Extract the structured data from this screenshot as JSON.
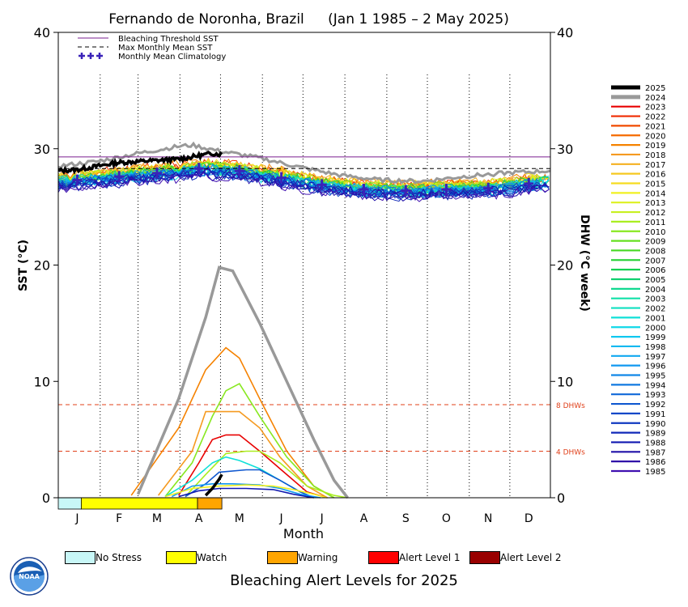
{
  "title_location": "Fernando de Noronha, Brazil",
  "title_period": "(Jan 1 1985 – 2 May 2025)",
  "colors": {
    "threshold": "#7a1f8f",
    "mmm": "#000000",
    "climatology": "#3a23b8",
    "dhw_ref": "#e0401a",
    "alert": {
      "No Stress": "#c8f7f7",
      "Watch": "#ffff00",
      "Warning": "#ffa500",
      "Alert Level 1": "#ff0000",
      "Alert Level 2": "#990000"
    }
  },
  "top_legend": [
    {
      "label": "Bleaching Threshold SST",
      "style": "solid"
    },
    {
      "label": "Max Monthly Mean SST",
      "style": "dashed"
    },
    {
      "label": "Monthly Mean Climatology",
      "style": "cross"
    }
  ],
  "year_legend": [
    {
      "year": "2025",
      "color": "#000000"
    },
    {
      "year": "2024",
      "color": "#999999"
    },
    {
      "year": "2023",
      "color": "#e80000"
    },
    {
      "year": "2022",
      "color": "#ef2b00"
    },
    {
      "year": "2021",
      "color": "#f04a00"
    },
    {
      "year": "2020",
      "color": "#f56a00"
    },
    {
      "year": "2019",
      "color": "#f58200"
    },
    {
      "year": "2018",
      "color": "#f59a20"
    },
    {
      "year": "2017",
      "color": "#f5b020"
    },
    {
      "year": "2016",
      "color": "#f5c820"
    },
    {
      "year": "2015",
      "color": "#f5dc20"
    },
    {
      "year": "2014",
      "color": "#f0f020"
    },
    {
      "year": "2013",
      "color": "#ddf020"
    },
    {
      "year": "2012",
      "color": "#c8f020"
    },
    {
      "year": "2011",
      "color": "#aaee20"
    },
    {
      "year": "2010",
      "color": "#88e820"
    },
    {
      "year": "2009",
      "color": "#66e020"
    },
    {
      "year": "2008",
      "color": "#44d820"
    },
    {
      "year": "2007",
      "color": "#22d030"
    },
    {
      "year": "2006",
      "color": "#10d050"
    },
    {
      "year": "2005",
      "color": "#10d070"
    },
    {
      "year": "2004",
      "color": "#10d890"
    },
    {
      "year": "2003",
      "color": "#10e0a8"
    },
    {
      "year": "2002",
      "color": "#10e0c0"
    },
    {
      "year": "2001",
      "color": "#10e0d8"
    },
    {
      "year": "2000",
      "color": "#10d8e8"
    },
    {
      "year": "1999",
      "color": "#10c8f0"
    },
    {
      "year": "1998",
      "color": "#10b8f0"
    },
    {
      "year": "1997",
      "color": "#10a8f0"
    },
    {
      "year": "1996",
      "color": "#1098f0"
    },
    {
      "year": "1995",
      "color": "#1088e8"
    },
    {
      "year": "1994",
      "color": "#1078e0"
    },
    {
      "year": "1993",
      "color": "#1068d8"
    },
    {
      "year": "1992",
      "color": "#1058d0"
    },
    {
      "year": "1991",
      "color": "#1048c8"
    },
    {
      "year": "1990",
      "color": "#1038c0"
    },
    {
      "year": "1989",
      "color": "#1028b8"
    },
    {
      "year": "1988",
      "color": "#1018b0"
    },
    {
      "year": "1987",
      "color": "#2010a8"
    },
    {
      "year": "1986",
      "color": "#3010a8"
    },
    {
      "year": "1985",
      "color": "#4010b0"
    }
  ],
  "alert_legend": [
    {
      "label": "No Stress",
      "color": "#c8f7f7"
    },
    {
      "label": "Watch",
      "color": "#ffff00"
    },
    {
      "label": "Warning",
      "color": "#ffa500"
    },
    {
      "label": "Alert Level 1",
      "color": "#ff0000"
    },
    {
      "label": "Alert Level 2",
      "color": "#990000"
    }
  ],
  "bottom_title": "Bleaching Alert Levels for 2025",
  "logo_text": "NOAA",
  "chart_data": {
    "type": "line",
    "xlabel": "Month",
    "ylabel_left": "SST (°C)",
    "ylabel_right": "DHW (°C week)",
    "x_ticks": [
      "J",
      "F",
      "M",
      "A",
      "M",
      "J",
      "J",
      "A",
      "S",
      "O",
      "N",
      "D"
    ],
    "ylim": [
      0,
      40
    ],
    "y_ticks": [
      0,
      10,
      20,
      30,
      40
    ],
    "bleaching_threshold_sst": 29.3,
    "max_monthly_mean_sst": 28.3,
    "dhw_reference_lines": [
      {
        "value": 8,
        "label": "8 DHWs"
      },
      {
        "value": 4,
        "label": "4 DHWs"
      }
    ],
    "monthly_mean_climatology": [
      27.3,
      27.6,
      27.9,
      28.3,
      28.1,
      27.5,
      26.9,
      26.5,
      26.4,
      26.5,
      26.6,
      27.0
    ],
    "sst_2025": {
      "day": [
        1,
        15,
        30,
        45,
        60,
        75,
        90,
        105,
        115,
        122
      ],
      "sst": [
        28.1,
        28.2,
        28.5,
        28.8,
        28.9,
        29.0,
        29.1,
        29.4,
        29.6,
        29.5
      ]
    },
    "sst_2024": {
      "day": [
        1,
        30,
        60,
        90,
        100,
        120,
        150,
        180,
        210,
        240,
        270,
        300,
        330,
        365
      ],
      "sst": [
        28.5,
        28.9,
        29.6,
        30.2,
        30.3,
        29.8,
        29.2,
        28.4,
        27.7,
        27.3,
        27.2,
        27.6,
        27.9,
        28.1
      ]
    },
    "dhw_2025": {
      "day": [
        110,
        115,
        120,
        122
      ],
      "dhw": [
        0.2,
        0.8,
        1.6,
        2.0
      ]
    },
    "dhw_2024": {
      "day": [
        60,
        90,
        110,
        120,
        130,
        150,
        170,
        190,
        205,
        215
      ],
      "dhw": [
        0.3,
        8.5,
        15.5,
        19.8,
        19.5,
        15.0,
        10.0,
        5.0,
        1.5,
        0
      ]
    },
    "dhw_other_years": [
      {
        "year": "2019",
        "color": "#f58200",
        "day": [
          55,
          90,
          110,
          125,
          135,
          150,
          170,
          190,
          205
        ],
        "dhw": [
          0.2,
          6.0,
          11.0,
          12.9,
          12.0,
          8.5,
          4.0,
          1.0,
          0
        ]
      },
      {
        "year": "2010",
        "color": "#88e820",
        "day": [
          80,
          100,
          115,
          125,
          135,
          150,
          170,
          190,
          205
        ],
        "dhw": [
          0.1,
          3.0,
          7.0,
          9.2,
          9.8,
          7.0,
          3.5,
          1.0,
          0
        ]
      },
      {
        "year": "2018",
        "color": "#f59a20",
        "day": [
          75,
          100,
          110,
          125,
          135,
          150,
          165,
          185,
          200
        ],
        "dhw": [
          0.2,
          4.0,
          7.4,
          7.4,
          7.4,
          6.0,
          3.5,
          1.0,
          0
        ]
      },
      {
        "year": "2023",
        "color": "#e80000",
        "day": [
          90,
          105,
          115,
          125,
          135,
          150,
          165,
          185,
          200
        ],
        "dhw": [
          0.2,
          3.0,
          5.0,
          5.4,
          5.4,
          4.0,
          2.5,
          0.5,
          0
        ]
      },
      {
        "year": "2011",
        "color": "#aaee20",
        "day": [
          95,
          110,
          125,
          140,
          150,
          165,
          185,
          205,
          215
        ],
        "dhw": [
          0.1,
          2.0,
          3.8,
          4.0,
          4.0,
          3.0,
          1.0,
          0.2,
          0
        ]
      },
      {
        "year": "2001",
        "color": "#10e0d8",
        "day": [
          80,
          100,
          115,
          125,
          135,
          150,
          165,
          180,
          190
        ],
        "dhw": [
          0.1,
          1.5,
          3.0,
          3.5,
          3.2,
          2.5,
          1.5,
          0.5,
          0
        ]
      },
      {
        "year": "1992",
        "color": "#1058d0",
        "day": [
          95,
          110,
          120,
          140,
          150,
          165,
          180,
          190
        ],
        "dhw": [
          0.1,
          1.2,
          2.2,
          2.4,
          2.4,
          1.5,
          0.5,
          0
        ]
      },
      {
        "year": "1996",
        "color": "#1098f0",
        "day": [
          85,
          100,
          115,
          130,
          150,
          165,
          180,
          195
        ],
        "dhw": [
          0.1,
          1.0,
          1.2,
          1.2,
          1.1,
          0.8,
          0.3,
          0
        ]
      },
      {
        "year": "2014",
        "color": "#f0f020",
        "day": [
          80,
          100,
          120,
          140,
          160,
          175,
          190,
          200
        ],
        "dhw": [
          0.1,
          0.8,
          1.0,
          1.1,
          1.0,
          0.7,
          0.3,
          0
        ]
      },
      {
        "year": "1988",
        "color": "#1018b0",
        "day": [
          90,
          105,
          120,
          140,
          160,
          175,
          190
        ],
        "dhw": [
          0.1,
          0.6,
          0.8,
          0.8,
          0.7,
          0.3,
          0
        ]
      }
    ],
    "alert_bar_2025": [
      {
        "level": "No Stress",
        "from_day": 1,
        "to_day": 18
      },
      {
        "level": "Watch",
        "from_day": 18,
        "to_day": 104
      },
      {
        "level": "Warning",
        "from_day": 104,
        "to_day": 122
      }
    ]
  }
}
